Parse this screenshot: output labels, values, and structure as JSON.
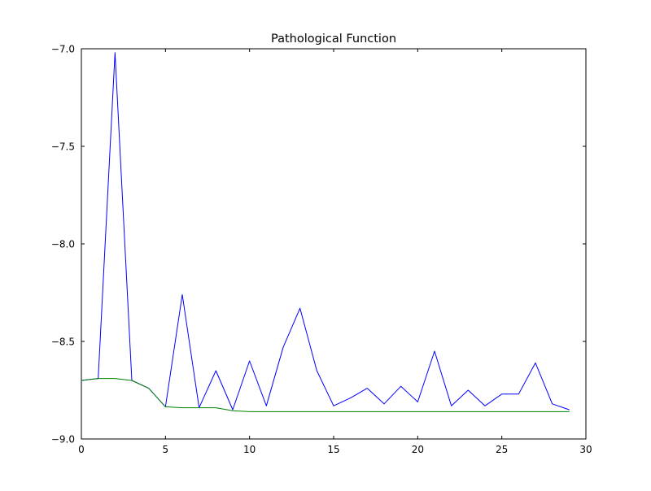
{
  "figure": {
    "background_color": "#ffffff",
    "axes_color": "#000000"
  },
  "chart_data": {
    "type": "line",
    "title": "Pathological Function",
    "xlabel": "",
    "ylabel": "",
    "xlim": [
      0,
      30
    ],
    "ylim": [
      -9.0,
      -7.0
    ],
    "xticks": [
      0,
      5,
      10,
      15,
      20,
      25,
      30
    ],
    "xtick_labels": [
      "0",
      "5",
      "10",
      "15",
      "20",
      "25",
      "30"
    ],
    "yticks": [
      -9.0,
      -8.5,
      -8.0,
      -7.5,
      -7.0
    ],
    "ytick_labels": [
      "−9.0",
      "−8.5",
      "−8.0",
      "−7.5",
      "−7.0"
    ],
    "grid": false,
    "legend": null,
    "x": [
      0,
      1,
      2,
      3,
      4,
      5,
      6,
      7,
      8,
      9,
      10,
      11,
      12,
      13,
      14,
      15,
      16,
      17,
      18,
      19,
      20,
      21,
      22,
      23,
      24,
      25,
      26,
      27,
      28,
      29
    ],
    "series": [
      {
        "name": "series-1-blue",
        "color": "#0000ff",
        "line_width": 1,
        "values": [
          -8.7,
          -8.69,
          -7.02,
          -8.7,
          -8.74,
          -8.835,
          -8.26,
          -8.84,
          -8.65,
          -8.85,
          -8.6,
          -8.83,
          -8.53,
          -8.33,
          -8.65,
          -8.83,
          -8.79,
          -8.74,
          -8.82,
          -8.73,
          -8.81,
          -8.55,
          -8.83,
          -8.75,
          -8.83,
          -8.77,
          -8.77,
          -8.61,
          -8.82,
          -8.85
        ]
      },
      {
        "name": "series-2-green",
        "color": "#008000",
        "line_width": 1,
        "values": [
          -8.7,
          -8.69,
          -8.69,
          -8.7,
          -8.74,
          -8.835,
          -8.84,
          -8.84,
          -8.84,
          -8.855,
          -8.86,
          -8.86,
          -8.86,
          -8.86,
          -8.86,
          -8.86,
          -8.86,
          -8.86,
          -8.86,
          -8.86,
          -8.86,
          -8.86,
          -8.86,
          -8.86,
          -8.86,
          -8.86,
          -8.86,
          -8.86,
          -8.86,
          -8.86
        ]
      }
    ]
  }
}
